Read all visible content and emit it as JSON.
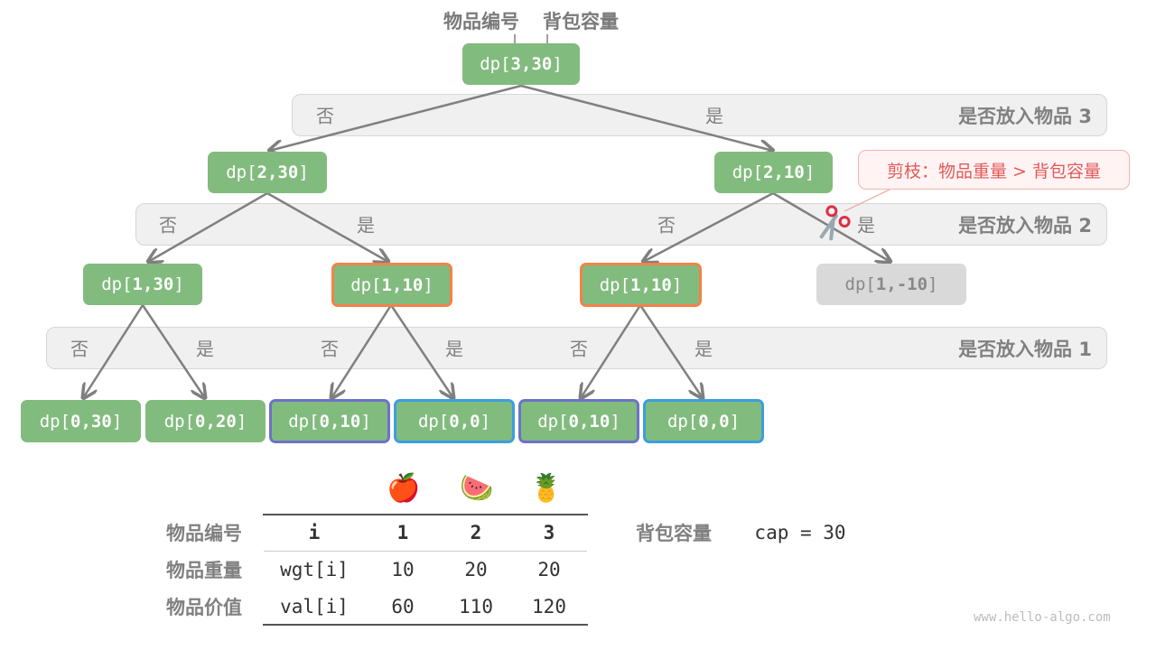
{
  "header": {
    "item_label": "物品编号",
    "capacity_label": "背包容量"
  },
  "levels": [
    {
      "title": "是否放入物品 3",
      "choices": [
        "否",
        "是"
      ]
    },
    {
      "title": "是否放入物品 2",
      "choices": [
        "否",
        "是",
        "否",
        "是"
      ]
    },
    {
      "title": "是否放入物品 1",
      "choices": [
        "否",
        "是",
        "否",
        "是",
        "否",
        "是"
      ]
    }
  ],
  "nodes": {
    "root": {
      "prefix": "dp[",
      "args": "3,30",
      "suffix": "]"
    },
    "l2": [
      {
        "prefix": "dp[",
        "args": "2,30",
        "suffix": "]"
      },
      {
        "prefix": "dp[",
        "args": "2,10",
        "suffix": "]"
      }
    ],
    "l1": [
      {
        "prefix": "dp[",
        "args": "1,30",
        "suffix": "]",
        "style": "normal"
      },
      {
        "prefix": "dp[",
        "args": "1,10",
        "suffix": "]",
        "style": "repeated"
      },
      {
        "prefix": "dp[",
        "args": "1,10",
        "suffix": "]",
        "style": "repeated"
      },
      {
        "prefix": "dp[",
        "args": "1,-10",
        "suffix": "]",
        "style": "pruned"
      }
    ],
    "l0": [
      {
        "prefix": "dp[",
        "args": "0,30",
        "suffix": "]",
        "style": "normal"
      },
      {
        "prefix": "dp[",
        "args": "0,20",
        "suffix": "]",
        "style": "normal"
      },
      {
        "prefix": "dp[",
        "args": "0,10",
        "suffix": "]",
        "style": "purple"
      },
      {
        "prefix": "dp[",
        "args": "0,0",
        "suffix": "]",
        "style": "blue"
      },
      {
        "prefix": "dp[",
        "args": "0,10",
        "suffix": "]",
        "style": "purple"
      },
      {
        "prefix": "dp[",
        "args": "0,0",
        "suffix": "]",
        "style": "blue"
      }
    ]
  },
  "prune_note": "剪枝：物品重量 > 背包容量",
  "prune_icon": "scissors-icon",
  "colors": {
    "node": "#82bb7e",
    "repeated": "#f2824a",
    "purple": "#6c72c9",
    "blue": "#3c9ee0",
    "pruned": "#d9d9d9",
    "prune_text": "#e25a5a"
  },
  "table": {
    "fruits": [
      "🍎",
      "🍉",
      "🍍"
    ],
    "row_labels": [
      "物品编号",
      "物品重量",
      "物品价值"
    ],
    "rows": [
      [
        "i",
        "1",
        "2",
        "3"
      ],
      [
        "wgt[i]",
        "10",
        "20",
        "20"
      ],
      [
        "val[i]",
        "60",
        "110",
        "120"
      ]
    ]
  },
  "capacity": {
    "label": "背包容量",
    "value": "cap = 30"
  },
  "watermark": "www.hello-algo.com"
}
